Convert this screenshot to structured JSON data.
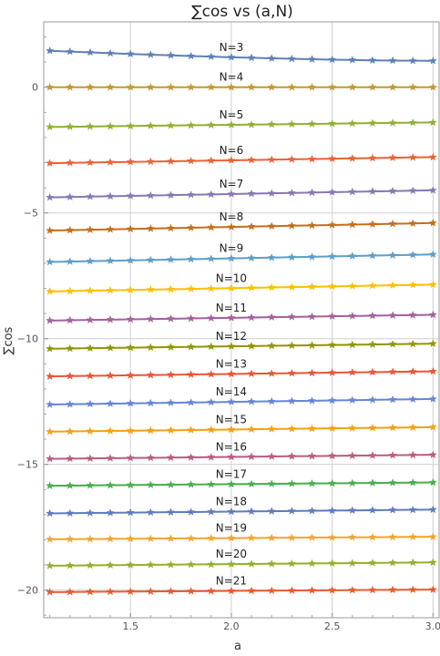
{
  "chart_data": {
    "type": "line",
    "title": "∑cos vs (a,N)",
    "xlabel": "a",
    "ylabel": "∑cos",
    "xlim": [
      1.07,
      3.03
    ],
    "ylim": [
      -21.1,
      2.6
    ],
    "xticks": [
      1.5,
      2.0,
      2.5,
      3.0
    ],
    "xtick_labels": [
      "1.5",
      "2.0",
      "2.5",
      "3.0"
    ],
    "yticks": [
      0,
      -5,
      -10,
      -15,
      -20
    ],
    "ytick_labels": [
      "0",
      "-5",
      "-10",
      "-15",
      "-20"
    ],
    "grid": true,
    "marker": "star",
    "x": [
      1.1,
      1.2,
      1.3,
      1.4,
      1.5,
      1.6,
      1.7,
      1.8,
      1.9,
      2.0,
      2.1,
      2.2,
      2.3,
      2.4,
      2.5,
      2.6,
      2.7,
      2.8,
      2.9,
      3.0
    ],
    "series": [
      {
        "name": "N=3",
        "label_at_x": 2.0,
        "color": "#5E81B5",
        "start": 1.45,
        "end": 1.05
      },
      {
        "name": "N=4",
        "label_at_x": 2.0,
        "color": "#C19A2E",
        "start": 0.0,
        "end": 0.0
      },
      {
        "name": "N=5",
        "label_at_x": 2.0,
        "color": "#8FB032",
        "start": -1.58,
        "end": -1.4
      },
      {
        "name": "N=6",
        "label_at_x": 2.0,
        "color": "#EB6235",
        "start": -3.02,
        "end": -2.78
      },
      {
        "name": "N=7",
        "label_at_x": 2.0,
        "color": "#8778B3",
        "start": -4.38,
        "end": -4.1
      },
      {
        "name": "N=8",
        "label_at_x": 2.0,
        "color": "#C56E1A",
        "start": -5.7,
        "end": -5.4
      },
      {
        "name": "N=9",
        "label_at_x": 2.0,
        "color": "#5D9EC7",
        "start": -6.95,
        "end": -6.65
      },
      {
        "name": "N=10",
        "label_at_x": 2.0,
        "color": "#FFBF00",
        "start": -8.12,
        "end": -7.85
      },
      {
        "name": "N=11",
        "label_at_x": 2.0,
        "color": "#A5609D",
        "start": -9.28,
        "end": -9.05
      },
      {
        "name": "N=12",
        "label_at_x": 2.0,
        "color": "#929600",
        "start": -10.4,
        "end": -10.2
      },
      {
        "name": "N=13",
        "label_at_x": 2.0,
        "color": "#E95536",
        "start": -11.5,
        "end": -11.3
      },
      {
        "name": "N=14",
        "label_at_x": 2.0,
        "color": "#6685D9",
        "start": -12.62,
        "end": -12.4
      },
      {
        "name": "N=15",
        "label_at_x": 2.0,
        "color": "#F89F13",
        "start": -13.7,
        "end": -13.52
      },
      {
        "name": "N=16",
        "label_at_x": 2.0,
        "color": "#BC5B80",
        "start": -14.78,
        "end": -14.62
      },
      {
        "name": "N=17",
        "label_at_x": 2.0,
        "color": "#47AE4D",
        "start": -15.85,
        "end": -15.72
      },
      {
        "name": "N=18",
        "label_at_x": 2.0,
        "color": "#5F7BBF",
        "start": -16.95,
        "end": -16.8
      },
      {
        "name": "N=19",
        "label_at_x": 2.0,
        "color": "#F0A630",
        "start": -17.98,
        "end": -17.88
      },
      {
        "name": "N=20",
        "label_at_x": 2.0,
        "color": "#92B12B",
        "start": -19.03,
        "end": -18.9
      },
      {
        "name": "N=21",
        "label_at_x": 2.0,
        "color": "#E85B2C",
        "start": -20.08,
        "end": -19.98
      }
    ]
  }
}
